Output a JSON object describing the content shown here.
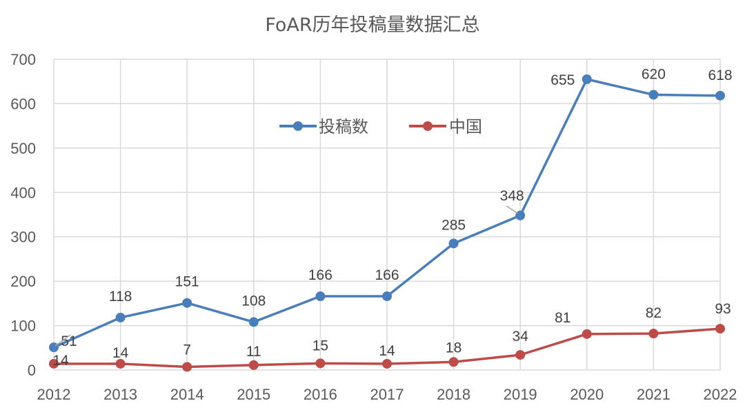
{
  "chart_data": {
    "type": "line",
    "title": "FoAR历年投稿量数据汇总",
    "xlabel": "",
    "ylabel": "",
    "categories": [
      "2012",
      "2013",
      "2014",
      "2015",
      "2016",
      "2017",
      "2018",
      "2019",
      "2020",
      "2021",
      "2022"
    ],
    "series": [
      {
        "name": "投稿数",
        "color": "#4A7EBB",
        "values": [
          51,
          118,
          151,
          108,
          166,
          166,
          285,
          348,
          655,
          620,
          618
        ]
      },
      {
        "name": "中国",
        "color": "#BE4B48",
        "values": [
          14,
          14,
          7,
          11,
          15,
          14,
          18,
          34,
          81,
          82,
          93
        ]
      }
    ],
    "ylim": [
      0,
      700
    ],
    "yticks": [
      0,
      100,
      200,
      300,
      400,
      500,
      600,
      700
    ],
    "grid": true,
    "legend_position": "inside-top-center",
    "data_labels": true
  }
}
